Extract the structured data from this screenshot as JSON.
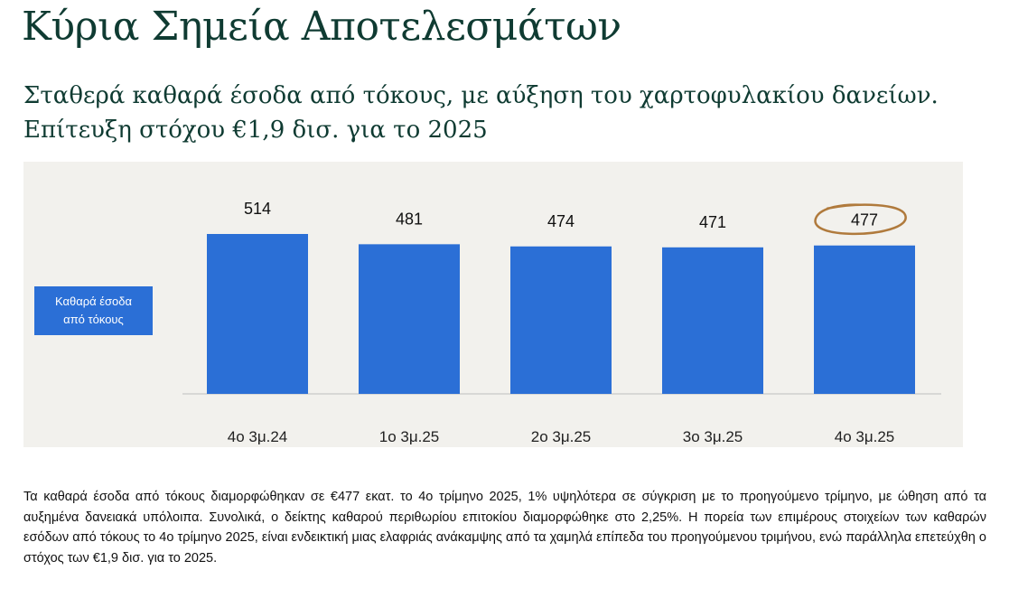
{
  "page": {
    "title": "Κύρια Σημεία Αποτελεσμάτων",
    "subtitle": "Σταθερά καθαρά έσοδα από τόκους, με αύξηση του χαρτοφυλακίου δανείων. Επίτευξη στόχου €1,9 δισ. για το 2025"
  },
  "legend": {
    "line1": "Καθαρά έσοδα",
    "line2": "από τόκους"
  },
  "chart_data": {
    "type": "bar",
    "title": "",
    "xlabel": "",
    "ylabel": "",
    "categories": [
      "4ο 3μ.24",
      "1ο 3μ.25",
      "2ο 3μ.25",
      "3ο 3μ.25",
      "4ο 3μ.25"
    ],
    "series": [
      {
        "name": "Καθαρά έσοδα από τόκους",
        "values": [
          514,
          481,
          474,
          471,
          477
        ]
      }
    ],
    "ylim": [
      0,
      514
    ],
    "grid": false,
    "highlighted_label_index": 4,
    "colors": {
      "bar": "#2b6fd6",
      "highlight_circle": "#b07a3c",
      "baseline": "#cfcfcf"
    }
  },
  "footnote": "Τα καθαρά έσοδα από τόκους διαμορφώθηκαν σε €477 εκατ. το 4ο τρίμηνο 2025, 1% υψηλότερα σε σύγκριση με το προηγούμενο τρίμηνο, με ώθηση από τα αυξημένα δανειακά υπόλοιπα. Συνολικά, ο δείκτης καθαρού περιθωρίου επιτοκίου διαμορφώθηκε στο 2,25%. Η πορεία των επιμέρους στοιχείων των καθαρών εσόδων από τόκους το 4ο τρίμηνο 2025, είναι ενδεικτική μιας ελαφριάς ανάκαμψης από τα χαμηλά επίπεδα του προηγούμενου τριμήνου, ενώ παράλληλα επετεύχθη ο στόχος των €1,9 δισ. για το 2025."
}
